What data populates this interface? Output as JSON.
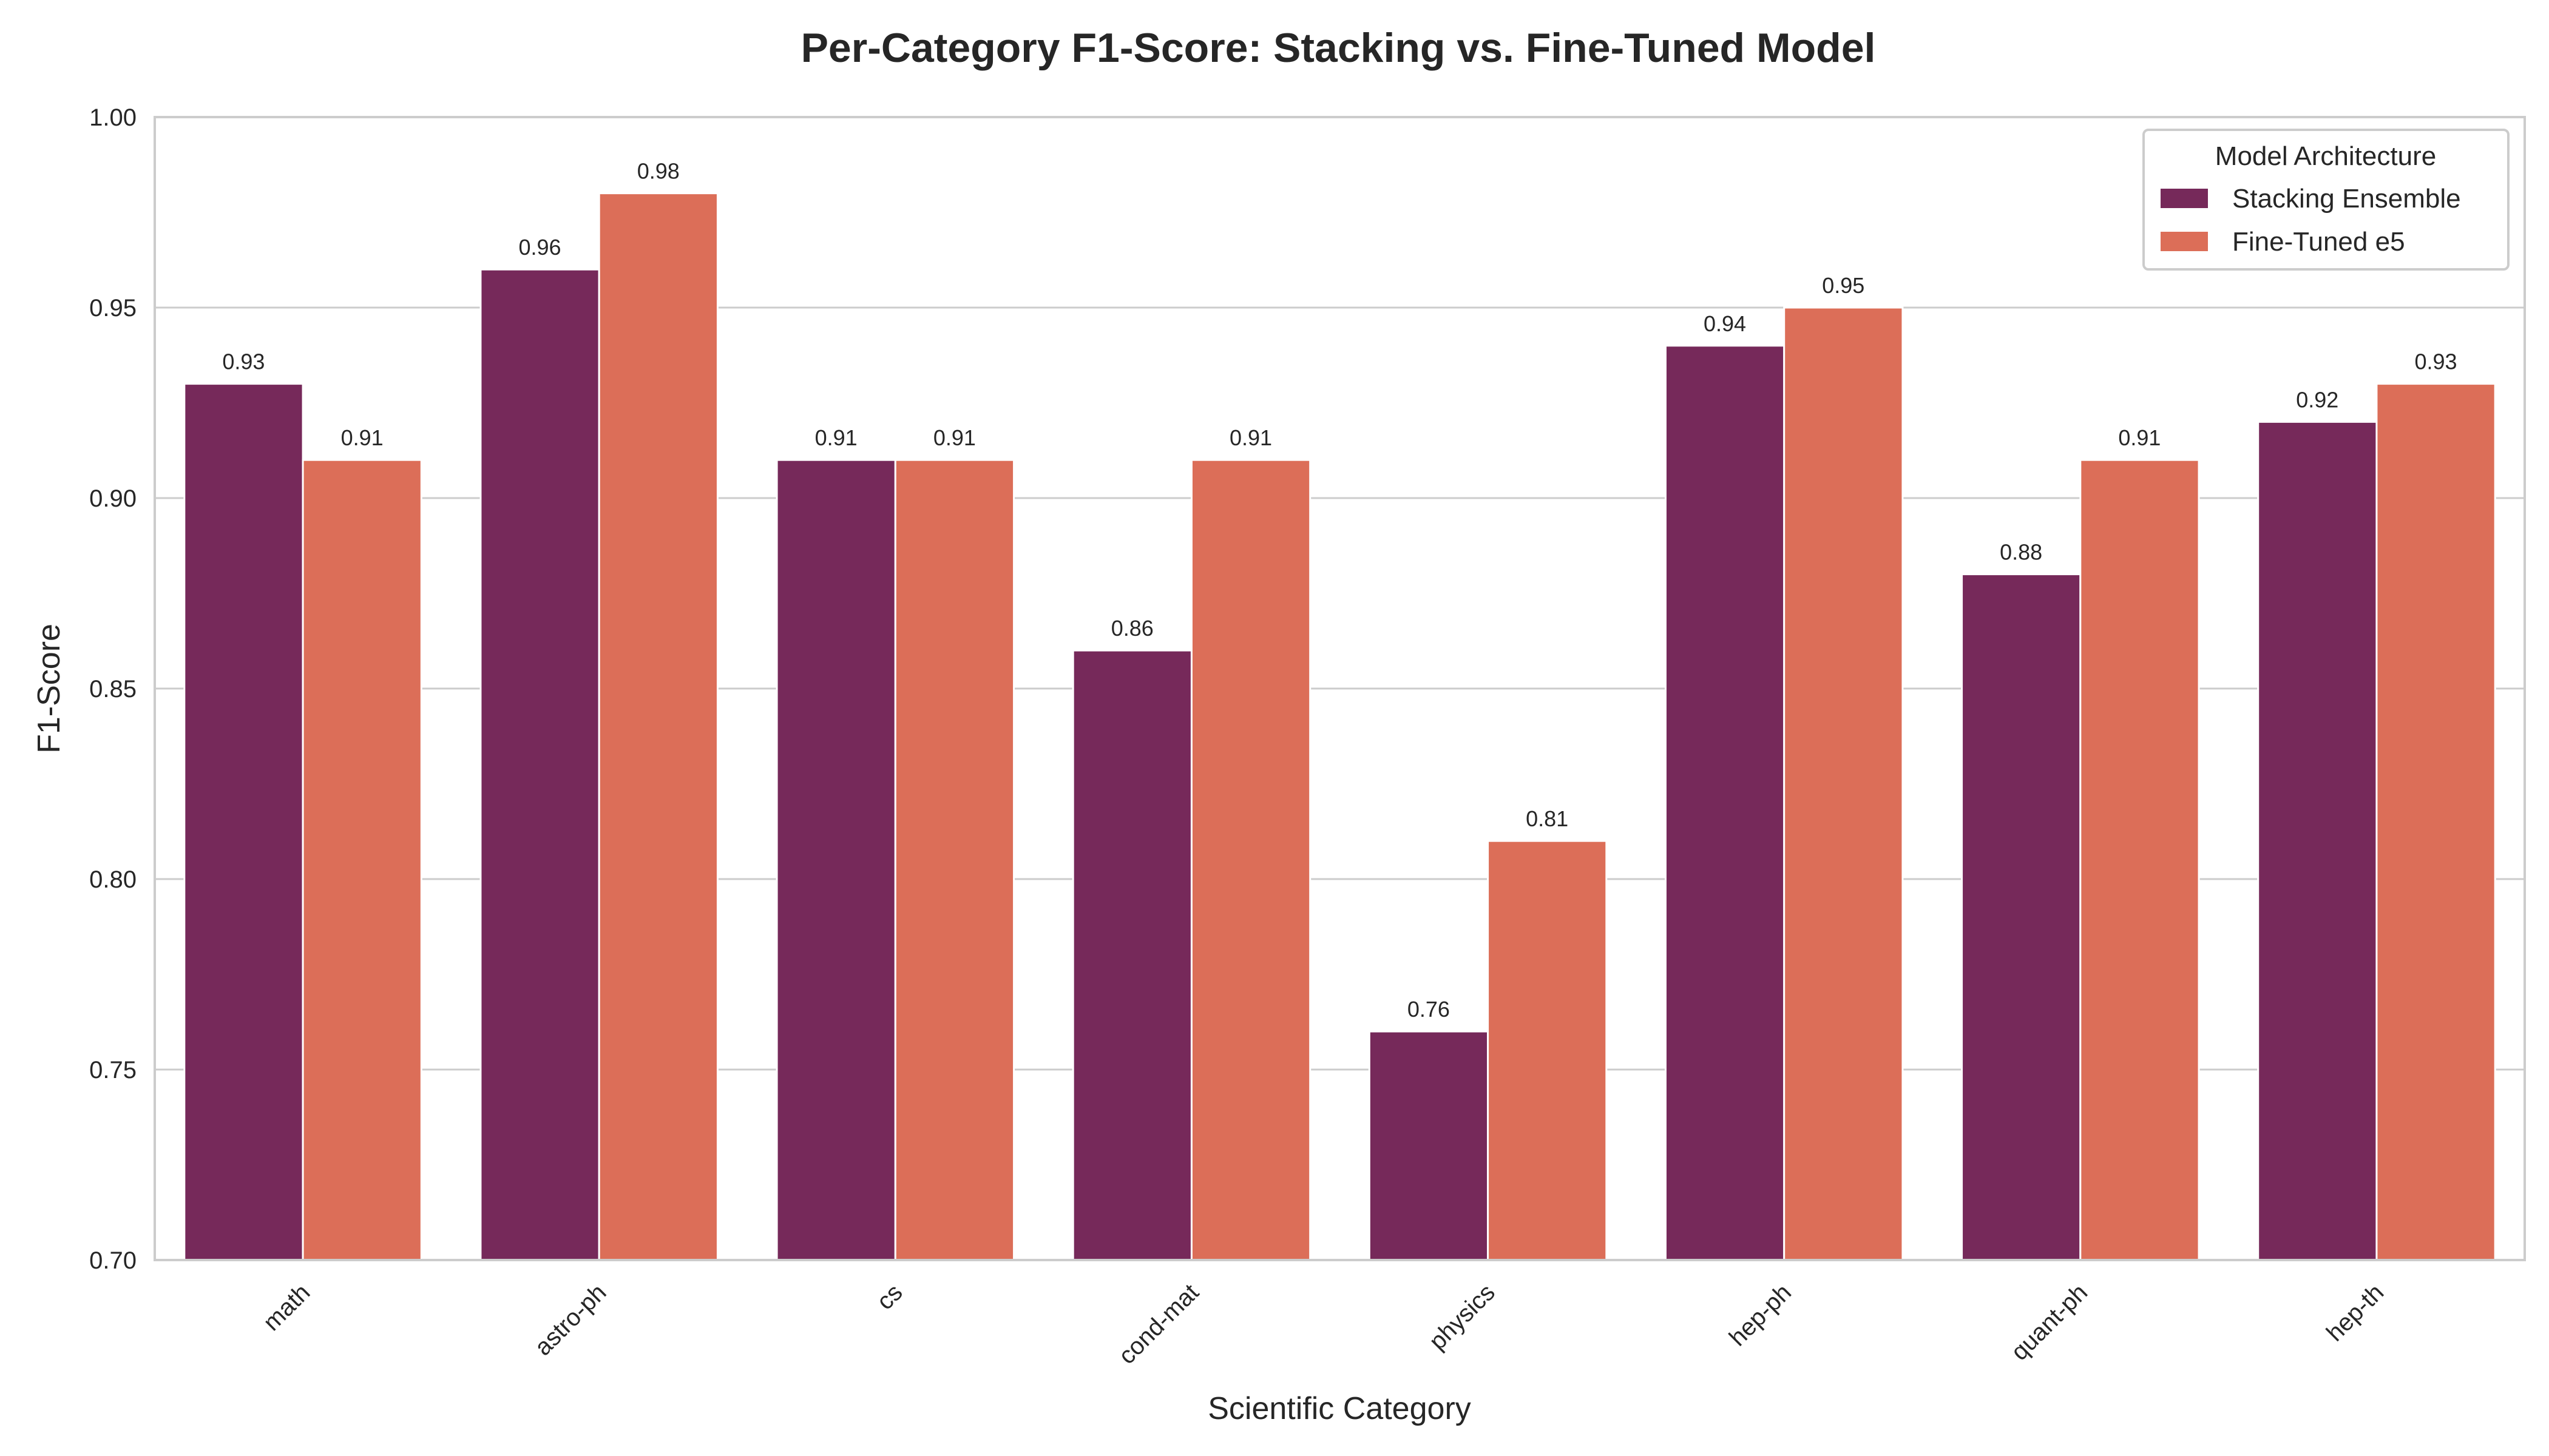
{
  "chart_data": {
    "type": "bar",
    "title": "Per-Category F1-Score: Stacking vs. Fine-Tuned Model",
    "xlabel": "Scientific Category",
    "ylabel": "F1-Score",
    "ylim": [
      0.7,
      1.0
    ],
    "yticks": [
      "0.70",
      "0.75",
      "0.80",
      "0.85",
      "0.90",
      "0.95",
      "1.00"
    ],
    "grid": "horizontal",
    "categories": [
      "math",
      "astro-ph",
      "cs",
      "cond-mat",
      "physics",
      "hep-ph",
      "quant-ph",
      "hep-th"
    ],
    "series": [
      {
        "name": "Stacking Ensemble",
        "color": "#76295a",
        "values": [
          0.93,
          0.96,
          0.91,
          0.86,
          0.76,
          0.94,
          0.88,
          0.92
        ],
        "labels": [
          "0.93",
          "0.96",
          "0.91",
          "0.86",
          "0.76",
          "0.94",
          "0.88",
          "0.92"
        ]
      },
      {
        "name": "Fine-Tuned e5",
        "color": "#dc6e58",
        "values": [
          0.91,
          0.98,
          0.91,
          0.91,
          0.81,
          0.95,
          0.91,
          0.93
        ],
        "labels": [
          "0.91",
          "0.98",
          "0.91",
          "0.91",
          "0.81",
          "0.95",
          "0.91",
          "0.93"
        ]
      }
    ],
    "legend": {
      "title": "Model Architecture",
      "placement": "top-right"
    }
  }
}
